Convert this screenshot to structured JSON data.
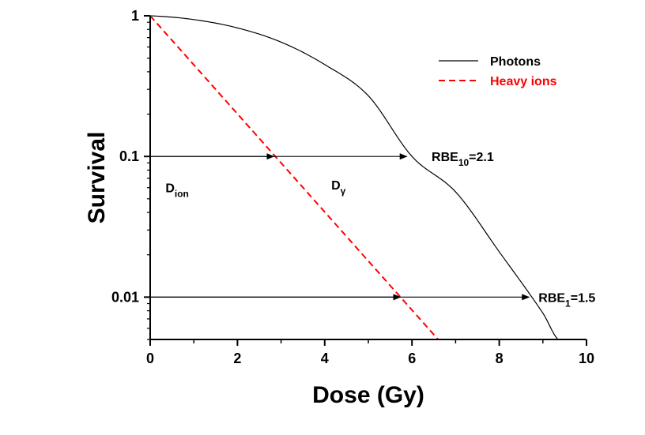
{
  "chart_data": {
    "type": "line",
    "xlabel": "Dose (Gy)",
    "ylabel": "Survival",
    "xlim": [
      0,
      10
    ],
    "ylim": [
      0.005,
      1
    ],
    "y_scale": "log",
    "grid": false,
    "legend_position": "top-right",
    "x_ticks": [
      "0",
      "2",
      "4",
      "6",
      "8",
      "10"
    ],
    "x_tick_values": [
      0,
      2,
      4,
      6,
      8,
      10
    ],
    "y_ticks": [
      "1",
      "0.1",
      "0.01"
    ],
    "y_tick_values": [
      1,
      0.1,
      0.01
    ],
    "series": [
      {
        "name": "Photons",
        "style": "solid",
        "color": "#000000",
        "x": [
          0,
          1,
          2,
          3,
          4,
          5,
          6,
          7,
          8,
          9,
          9.35
        ],
        "y": [
          1.0,
          0.94,
          0.82,
          0.65,
          0.45,
          0.27,
          0.1,
          0.056,
          0.021,
          0.0077,
          0.005
        ]
      },
      {
        "name": "Heavy ions",
        "style": "dashed",
        "color": "#ff0000",
        "x": [
          0,
          6.6
        ],
        "y": [
          1.0,
          0.005
        ]
      }
    ],
    "arrows": [
      {
        "from": [
          0,
          0.1
        ],
        "to": [
          2.85,
          0.1
        ],
        "label": ""
      },
      {
        "from": [
          0,
          0.1
        ],
        "to": [
          5.9,
          0.1
        ],
        "label": ""
      },
      {
        "from": [
          0,
          0.01
        ],
        "to": [
          5.75,
          0.01
        ],
        "label": ""
      },
      {
        "from": [
          0,
          0.01
        ],
        "to": [
          8.7,
          0.01
        ],
        "label": ""
      }
    ],
    "annotations": [
      {
        "id": "d-ion",
        "base": "D",
        "sub": "ion",
        "x": 0.35,
        "y": 0.06
      },
      {
        "id": "d-gamma",
        "base": "D",
        "sub": "γ",
        "x": 4.15,
        "y": 0.063
      },
      {
        "id": "rbe10",
        "base": "RBE",
        "sub": "10",
        "tail": "=2.1",
        "x": 6.45,
        "y": 0.1
      },
      {
        "id": "rbe1",
        "base": "RBE",
        "sub": "1",
        "tail": "=1.5",
        "x": 8.9,
        "y": 0.01
      }
    ]
  }
}
